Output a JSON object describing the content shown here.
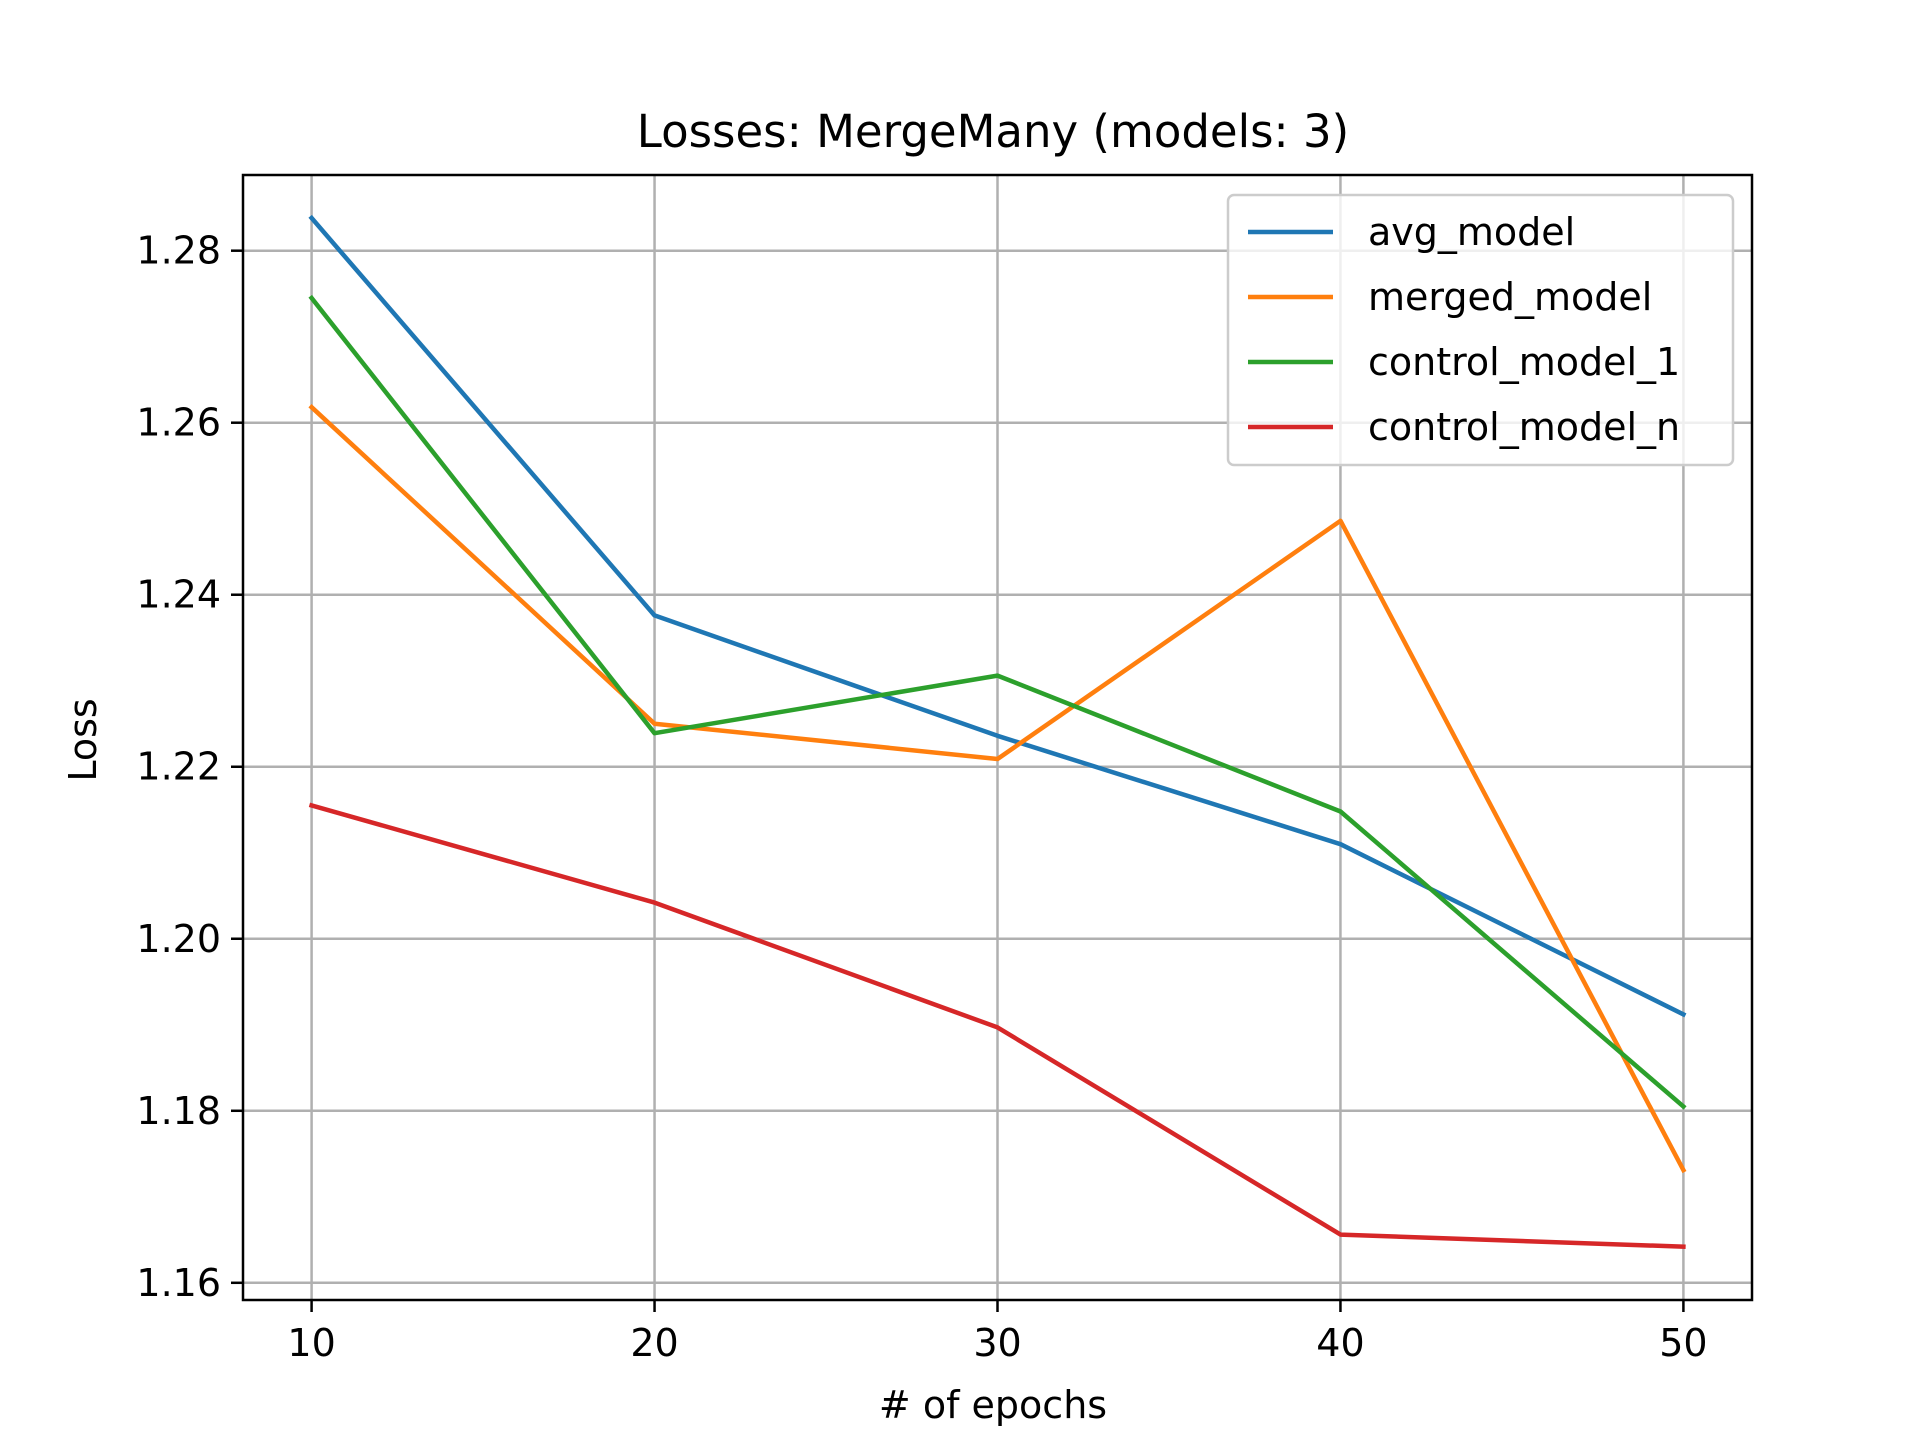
{
  "chart_data": {
    "type": "line",
    "title": "Losses: MergeMany (models: 3)",
    "xlabel": "# of epochs",
    "ylabel": "Loss",
    "x": [
      10,
      20,
      30,
      40,
      50
    ],
    "xlim": [
      8,
      52
    ],
    "ylim": [
      1.158,
      1.2888
    ],
    "xticks": [
      10,
      20,
      30,
      40,
      50
    ],
    "xtick_labels": [
      "10",
      "20",
      "30",
      "40",
      "50"
    ],
    "yticks": [
      1.16,
      1.18,
      1.2,
      1.22,
      1.24,
      1.26,
      1.28
    ],
    "ytick_labels": [
      "1.16",
      "1.18",
      "1.20",
      "1.22",
      "1.24",
      "1.26",
      "1.28"
    ],
    "grid": true,
    "legend_position": "top-right",
    "series": [
      {
        "name": "avg_model",
        "color": "#1f77b4",
        "values": [
          1.2838,
          1.2376,
          1.2236,
          1.211,
          1.1912
        ]
      },
      {
        "name": "merged_model",
        "color": "#ff7f0e",
        "values": [
          1.2618,
          1.225,
          1.2209,
          1.2486,
          1.1731
        ]
      },
      {
        "name": "control_model_1",
        "color": "#2ca02c",
        "values": [
          1.2745,
          1.2239,
          1.2306,
          1.2148,
          1.1805
        ]
      },
      {
        "name": "control_model_n",
        "color": "#d62728",
        "values": [
          1.2155,
          1.2042,
          1.1897,
          1.1656,
          1.1642
        ]
      }
    ]
  }
}
